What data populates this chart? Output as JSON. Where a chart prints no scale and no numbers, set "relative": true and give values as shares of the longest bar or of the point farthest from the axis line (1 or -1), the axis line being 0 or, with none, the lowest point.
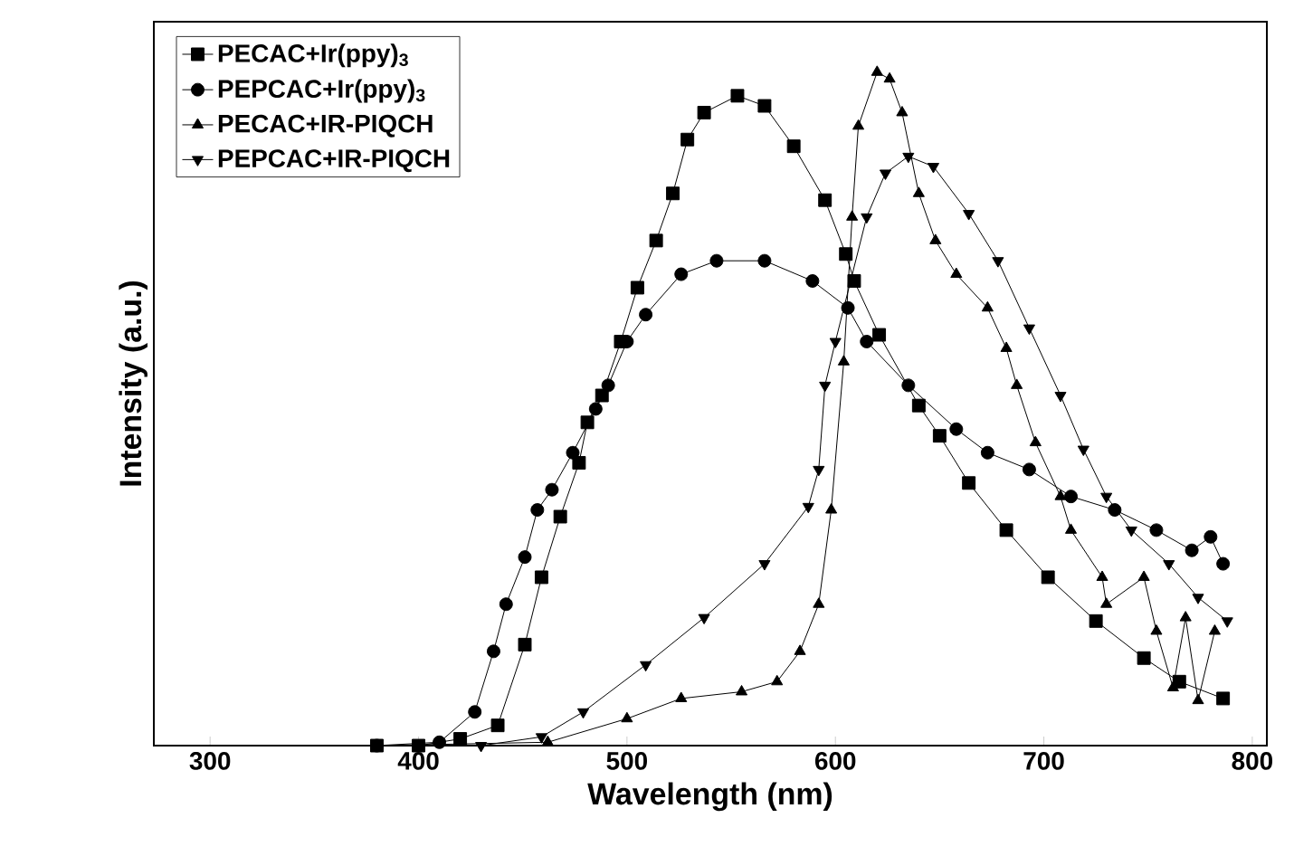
{
  "chart_data": {
    "type": "line",
    "relative": true,
    "xlabel": "Wavelength (nm)",
    "ylabel": "Intensity (a.u.)",
    "xlim": [
      273,
      807
    ],
    "xticks": [
      300,
      400,
      500,
      600,
      700,
      800
    ],
    "tick_labels": "x",
    "grid": false,
    "legend": "top left",
    "line_style": "solid",
    "series": [
      {
        "name": "PECAC+Ir(ppy)$_{3}$",
        "color": "#000000",
        "marker": "square",
        "x": [
          380,
          400,
          420,
          438,
          451,
          459,
          468,
          477,
          481,
          488,
          497,
          505,
          514,
          522,
          529,
          537,
          553,
          566,
          580,
          595,
          605,
          609,
          621,
          640,
          650,
          664,
          682,
          702,
          725,
          748,
          765,
          786
        ],
        "values": [
          0,
          0,
          0.01,
          0.03,
          0.15,
          0.25,
          0.34,
          0.42,
          0.48,
          0.52,
          0.6,
          0.68,
          0.75,
          0.82,
          0.9,
          0.94,
          0.965,
          0.95,
          0.89,
          0.81,
          0.73,
          0.69,
          0.61,
          0.505,
          0.46,
          0.39,
          0.32,
          0.25,
          0.185,
          0.13,
          0.095,
          0.07
        ]
      },
      {
        "name": "PEPCAC+Ir(ppy)$_{3}$",
        "color": "#000000",
        "marker": "circle",
        "x": [
          380,
          410,
          427,
          436,
          442,
          451,
          457,
          464,
          474,
          485,
          491,
          500,
          509,
          526,
          543,
          566,
          589,
          606,
          615,
          635,
          658,
          673,
          693,
          713,
          734,
          754,
          771,
          780,
          786
        ],
        "values": [
          0,
          0.005,
          0.05,
          0.14,
          0.21,
          0.28,
          0.35,
          0.38,
          0.435,
          0.5,
          0.535,
          0.6,
          0.64,
          0.7,
          0.72,
          0.72,
          0.69,
          0.65,
          0.6,
          0.535,
          0.47,
          0.435,
          0.41,
          0.37,
          0.35,
          0.32,
          0.29,
          0.31,
          0.27
        ]
      },
      {
        "name": "PECAC+IR-PIQCH",
        "color": "#000000",
        "marker": "triangle",
        "x": [
          380,
          462,
          500,
          526,
          555,
          572,
          583,
          592,
          598,
          604,
          608,
          611,
          620,
          626,
          632,
          640,
          648,
          658,
          673,
          682,
          687,
          696,
          708,
          713,
          728,
          730,
          748,
          754,
          762,
          768,
          774,
          782
        ],
        "values": [
          0,
          0.005,
          0.04,
          0.07,
          0.08,
          0.095,
          0.14,
          0.21,
          0.35,
          0.57,
          0.785,
          0.92,
          1.0,
          0.99,
          0.94,
          0.82,
          0.75,
          0.7,
          0.65,
          0.59,
          0.535,
          0.45,
          0.37,
          0.32,
          0.25,
          0.21,
          0.25,
          0.17,
          0.086,
          0.19,
          0.067,
          0.17
        ]
      },
      {
        "name": "PEPCAC+IR-PIQCH",
        "color": "#000000",
        "marker": "triangle-down",
        "x": [
          380,
          430,
          459,
          479,
          509,
          537,
          566,
          587,
          592,
          595,
          600,
          615,
          624,
          635,
          647,
          664,
          678,
          693,
          708,
          719,
          730,
          742,
          760,
          774,
          788
        ],
        "values": [
          0,
          0,
          0.013,
          0.05,
          0.12,
          0.19,
          0.27,
          0.355,
          0.41,
          0.535,
          0.6,
          0.785,
          0.85,
          0.875,
          0.86,
          0.79,
          0.72,
          0.62,
          0.52,
          0.44,
          0.37,
          0.32,
          0.27,
          0.22,
          0.185
        ]
      }
    ]
  }
}
